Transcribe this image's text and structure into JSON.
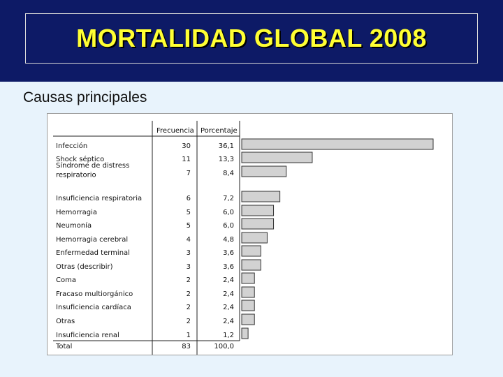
{
  "header": {
    "title": "MORTALIDAD GLOBAL 2008"
  },
  "subtitle": "Causas principales",
  "chart_data": {
    "type": "bar",
    "orientation": "horizontal",
    "columns": [
      "Frecuencia",
      "Porcentaje"
    ],
    "categories": [
      "Infección",
      "Shock séptico",
      "Síndrome de distress respiratorio",
      "Insuficiencia respiratoria",
      "Hemorragia",
      "Neumonía",
      "Hemorragia cerebral",
      "Enfermedad terminal",
      "Otras (describir)",
      "Coma",
      "Fracaso multiorgánico",
      "Insuficiencia cardíaca",
      "Otras",
      "Insuficiencia renal"
    ],
    "frequency": [
      30,
      11,
      7,
      6,
      5,
      5,
      4,
      3,
      3,
      2,
      2,
      2,
      2,
      1
    ],
    "percent_labels": [
      "36,1",
      "13,3",
      "8,4",
      "7,2",
      "6,0",
      "6,0",
      "4,8",
      "3,6",
      "3,6",
      "2,4",
      "2,4",
      "2,4",
      "2,4",
      "1,2"
    ],
    "values": [
      36.1,
      13.3,
      8.4,
      7.2,
      6.0,
      6.0,
      4.8,
      3.6,
      3.6,
      2.4,
      2.4,
      2.4,
      2.4,
      1.2
    ],
    "total": {
      "label": "Total",
      "frequency": "83",
      "percent": "100,0"
    },
    "grid": false,
    "colors": {
      "bar_fill": "#d2d2d2",
      "bar_stroke": "#333333"
    }
  }
}
